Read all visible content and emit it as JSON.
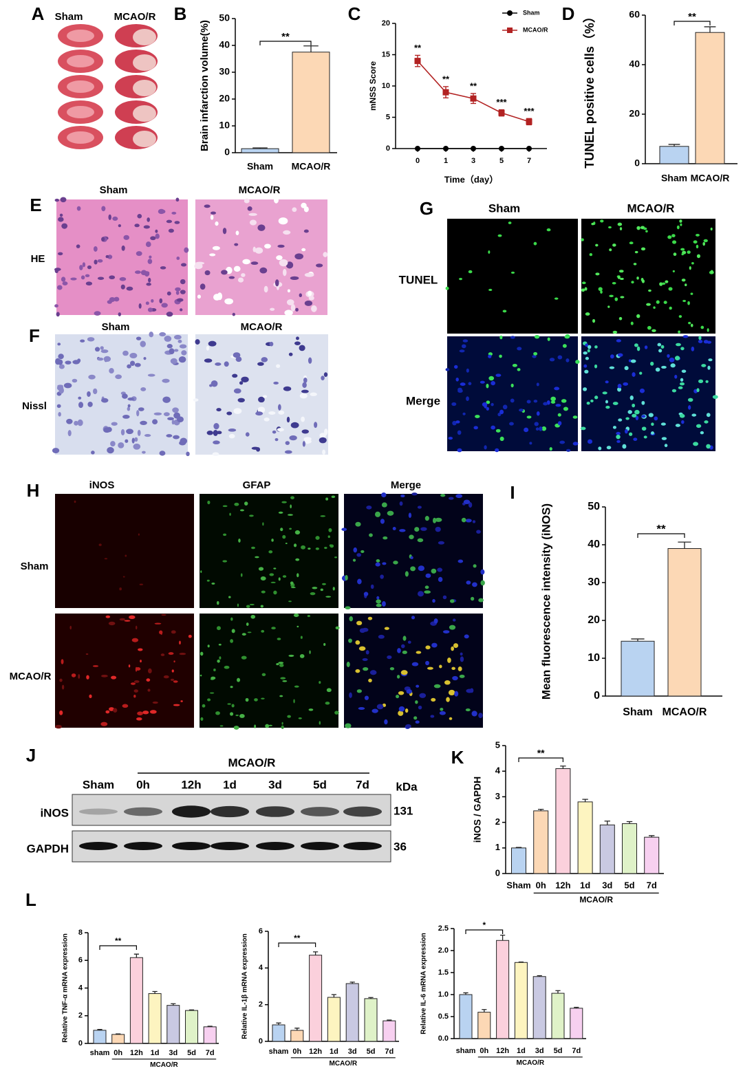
{
  "panel_letters": [
    "A",
    "B",
    "C",
    "D",
    "E",
    "F",
    "G",
    "H",
    "I",
    "J",
    "K",
    "L"
  ],
  "panel_a": {
    "columns": [
      "Sham",
      "MCAO/R"
    ]
  },
  "panel_e": {
    "columns": [
      "Sham",
      "MCAO/R"
    ],
    "row": "HE"
  },
  "panel_f": {
    "columns": [
      "Sham",
      "MCAO/R"
    ],
    "row": "Nissl"
  },
  "panel_g": {
    "columns": [
      "Sham",
      "MCAO/R"
    ],
    "rows": [
      "TUNEL",
      "Merge"
    ]
  },
  "panel_h": {
    "columns": [
      "iNOS",
      "GFAP",
      "Merge"
    ],
    "rows": [
      "Sham",
      "MCAO/R"
    ]
  },
  "panel_j": {
    "group": "MCAO/R",
    "lanes": [
      "Sham",
      "0h",
      "12h",
      "1d",
      "3d",
      "5d",
      "7d"
    ],
    "unit": "kDa",
    "bands": [
      {
        "name": "iNOS",
        "size": "131"
      },
      {
        "name": "GAPDH",
        "size": "36"
      }
    ]
  },
  "chart_data": [
    {
      "type": "bar",
      "ylabel": "Brain infarction volume(%)",
      "categories": [
        "Sham",
        "MCAO/R"
      ],
      "values": [
        1.5,
        37.5
      ],
      "errors": [
        0.3,
        2.3
      ],
      "colors": [
        "#b9d3f1",
        "#fcd8b5"
      ],
      "ylim": [
        0,
        50
      ],
      "yticks": [
        0,
        10,
        20,
        30,
        40,
        50
      ],
      "annotation": "**"
    },
    {
      "type": "line",
      "ylabel": "mNSS Score",
      "xlabel": "Time（day）",
      "categories": [
        "0",
        "1",
        "3",
        "5",
        "7"
      ],
      "series": [
        {
          "name": "Sham",
          "color": "#000000",
          "values": [
            0,
            0,
            0,
            0,
            0
          ]
        },
        {
          "name": "MCAO/R",
          "color": "#b22222",
          "values": [
            14,
            9,
            8,
            5.7,
            4.3
          ],
          "errors": [
            0.9,
            0.9,
            0.8,
            0.5,
            0.5
          ],
          "point_labels": [
            "**",
            "**",
            "**",
            "***",
            "***"
          ]
        }
      ],
      "ylim": [
        0,
        20
      ],
      "yticks": [
        0,
        5,
        10,
        15,
        20
      ]
    },
    {
      "type": "bar",
      "ylabel": "TUNEL positive cells（%）",
      "categories": [
        "Sham",
        "MCAO/R"
      ],
      "values": [
        7,
        53
      ],
      "errors": [
        0.8,
        2.3
      ],
      "colors": [
        "#b9d3f1",
        "#fcd8b5"
      ],
      "ylim": [
        0,
        60
      ],
      "yticks": [
        0,
        20,
        40,
        60
      ],
      "annotation": "**"
    },
    {
      "type": "bar",
      "ylabel": "Mean fluorescence intensity (iNOS)",
      "categories": [
        "Sham",
        "MCAO/R"
      ],
      "values": [
        14.5,
        39
      ],
      "errors": [
        0.6,
        1.7
      ],
      "colors": [
        "#b9d3f1",
        "#fcd8b5"
      ],
      "ylim": [
        0,
        50
      ],
      "yticks": [
        0,
        10,
        20,
        30,
        40,
        50
      ],
      "annotation": "**"
    },
    {
      "type": "bar",
      "ylabel": "iNOS / GAPDH",
      "categories": [
        "Sham",
        "0h",
        "12h",
        "1d",
        "3d",
        "5d",
        "7d"
      ],
      "values": [
        1,
        2.45,
        4.1,
        2.8,
        1.9,
        1.95,
        1.42
      ],
      "errors": [
        0.02,
        0.06,
        0.1,
        0.1,
        0.15,
        0.08,
        0.06
      ],
      "colors": [
        "#b9d3f1",
        "#fcd8b5",
        "#fbd0dc",
        "#fdf4c0",
        "#c9c9e2",
        "#dff2c8",
        "#f7d0f0"
      ],
      "ylim": [
        0,
        5
      ],
      "yticks": [
        0,
        1,
        2,
        3,
        4,
        5
      ],
      "annotation": "**",
      "group_label": "MCAO/R"
    },
    {
      "type": "bar",
      "ylabel": "Relative TNF-α mRNA expression",
      "categories": [
        "sham",
        "0h",
        "12h",
        "1d",
        "3d",
        "5d",
        "7d"
      ],
      "values": [
        0.95,
        0.65,
        6.2,
        3.6,
        2.75,
        2.38,
        1.2
      ],
      "errors": [
        0.06,
        0.04,
        0.25,
        0.15,
        0.12,
        0.04,
        0.04
      ],
      "colors": [
        "#b9d3f1",
        "#fcd8b5",
        "#fbd0dc",
        "#fdf4c0",
        "#c9c9e2",
        "#dff2c8",
        "#f7d0f0"
      ],
      "ylim": [
        0,
        8
      ],
      "yticks": [
        0,
        2,
        4,
        6,
        8
      ],
      "annotation": "**",
      "group_label": "MCAO/R"
    },
    {
      "type": "bar",
      "ylabel": "Relative IL-1β mRNA expression",
      "categories": [
        "sham",
        "0h",
        "12h",
        "1d",
        "3d",
        "5d",
        "7d"
      ],
      "values": [
        0.9,
        0.6,
        4.7,
        2.4,
        3.15,
        2.33,
        1.12
      ],
      "errors": [
        0.1,
        0.12,
        0.18,
        0.15,
        0.08,
        0.06,
        0.04
      ],
      "colors": [
        "#b9d3f1",
        "#fcd8b5",
        "#fbd0dc",
        "#fdf4c0",
        "#c9c9e2",
        "#dff2c8",
        "#f7d0f0"
      ],
      "ylim": [
        0,
        6
      ],
      "yticks": [
        0,
        2,
        4,
        6
      ],
      "annotation": "**",
      "group_label": "MCAO/R"
    },
    {
      "type": "bar",
      "ylabel": "Relative IL-6 mRNA expression",
      "categories": [
        "sham",
        "0h",
        "12h",
        "1d",
        "3d",
        "5d",
        "7d"
      ],
      "values": [
        1.0,
        0.6,
        2.23,
        1.73,
        1.41,
        1.03,
        0.69
      ],
      "errors": [
        0.04,
        0.06,
        0.12,
        0.01,
        0.02,
        0.06,
        0.02
      ],
      "colors": [
        "#b9d3f1",
        "#fcd8b5",
        "#fbd0dc",
        "#fdf4c0",
        "#c9c9e2",
        "#dff2c8",
        "#f7d0f0"
      ],
      "ylim": [
        0,
        2.5
      ],
      "yticks": [
        {
          "value": 0,
          "label": "0.0"
        },
        0.5,
        {
          "value": 1,
          "label": "1.0"
        },
        1.5,
        {
          "value": 2,
          "label": "2.0"
        },
        2.5
      ],
      "annotation": "*",
      "group_label": "MCAO/R"
    }
  ]
}
